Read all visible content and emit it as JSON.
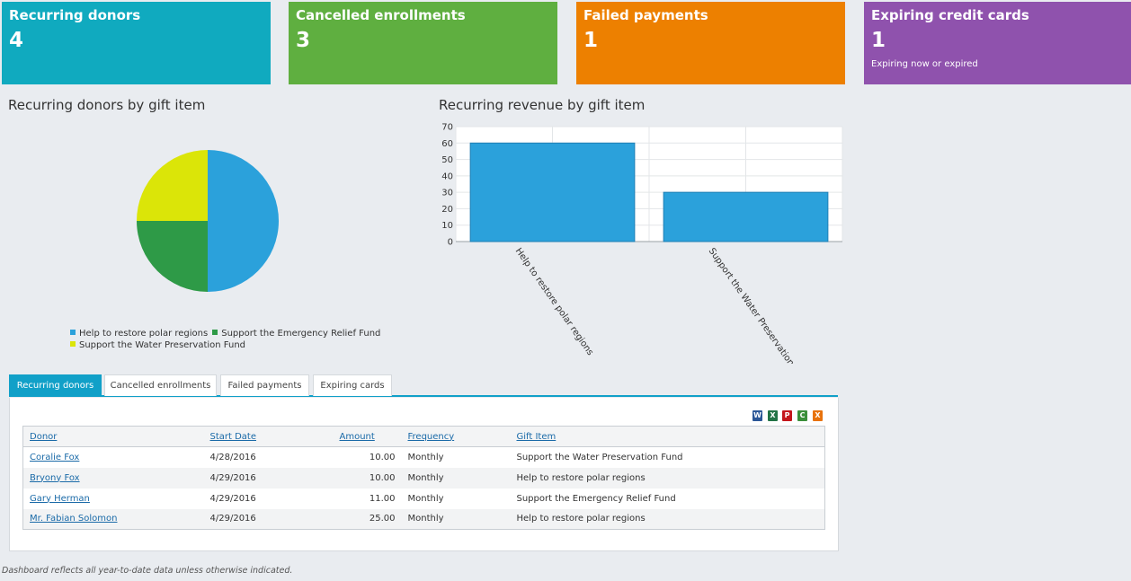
{
  "tiles": [
    {
      "title": "Recurring donors",
      "count": "4",
      "sub": "",
      "color": "#10aabf"
    },
    {
      "title": "Cancelled enrollments",
      "count": "3",
      "sub": "",
      "color": "#5faf40"
    },
    {
      "title": "Failed payments",
      "count": "1",
      "sub": "",
      "color": "#ed8000"
    },
    {
      "title": "Expiring credit cards",
      "count": "1",
      "sub": "Expiring now or expired",
      "color": "#8f52ad"
    }
  ],
  "pie_title": "Recurring donors by gift item",
  "bar_title": "Recurring revenue by gift item",
  "chart_data": [
    {
      "type": "pie",
      "title": "Recurring donors by gift item",
      "categories": [
        "Help to restore polar regions",
        "Support the Emergency Relief Fund",
        "Support the Water Preservation Fund"
      ],
      "values": [
        2,
        1,
        1
      ],
      "colors": [
        "#2ba1db",
        "#2e9a47",
        "#dbe508"
      ],
      "legend_position": "bottom"
    },
    {
      "type": "bar",
      "title": "Recurring revenue by gift item",
      "categories": [
        "Help to restore polar regions",
        "Support the Water Preservation Fund"
      ],
      "values": [
        60,
        30
      ],
      "ylim": [
        0,
        70
      ],
      "yticks": [
        0,
        10,
        20,
        30,
        40,
        50,
        60,
        70
      ],
      "color": "#2ba1db",
      "grid": true
    }
  ],
  "tabs": [
    "Recurring donors",
    "Cancelled enrollments",
    "Failed payments",
    "Expiring cards"
  ],
  "export_icons": [
    {
      "name": "word-export-icon",
      "glyph": "W",
      "color": "#2b5797"
    },
    {
      "name": "excel-export-icon",
      "glyph": "X",
      "color": "#217346"
    },
    {
      "name": "pdf-export-icon",
      "glyph": "P",
      "color": "#c4161c"
    },
    {
      "name": "csv-export-icon",
      "glyph": "C",
      "color": "#3a8f3a"
    },
    {
      "name": "xml-export-icon",
      "glyph": "X",
      "color": "#e8720c"
    }
  ],
  "table": {
    "headers": [
      "Donor",
      "Start Date",
      "Amount",
      "Frequency",
      "Gift Item"
    ],
    "rows": [
      [
        "Coralie Fox",
        "4/28/2016",
        "10.00",
        "Monthly",
        "Support the Water Preservation Fund"
      ],
      [
        "Bryony Fox",
        "4/29/2016",
        "10.00",
        "Monthly",
        "Help to restore polar regions"
      ],
      [
        "Gary Herman",
        "4/29/2016",
        "11.00",
        "Monthly",
        "Support the Emergency Relief Fund"
      ],
      [
        "Mr. Fabian Solomon",
        "4/29/2016",
        "25.00",
        "Monthly",
        "Help to restore polar regions"
      ]
    ]
  },
  "footnote": "Dashboard reflects all year-to-date data unless otherwise indicated."
}
